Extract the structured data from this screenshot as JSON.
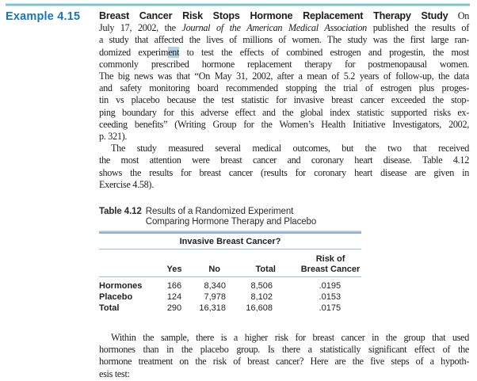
{
  "page": {
    "example_label": "Example 4.15",
    "colors": {
      "accent_teal": "#7cc4c9",
      "example_blue": "#1477bd",
      "table_rule_blue": "#8cb0d8",
      "table_thin_rule_blue": "#a5c0de",
      "selection_highlight_blue": "#b4d4e5"
    }
  },
  "paragraphs": [
    {
      "indent": false,
      "lines": [
        [
          {
            "t": "Breast Cancer Risk Stops Hormone Replacement Therapy Study",
            "s": "b"
          },
          {
            "t": " On"
          }
        ],
        [
          {
            "t": "July 17, 2002, the "
          },
          {
            "t": "Journal of the American Medical Association",
            "s": "i"
          },
          {
            "t": " published the results of"
          }
        ],
        [
          {
            "t": "a study that affected the lives of millions of women. The study was the first large ran-"
          }
        ],
        [
          {
            "t": "domized experim"
          },
          {
            "t": "ent",
            "s": "hl"
          },
          {
            "t": " to test the effects of combined estrogen and progestin, the most"
          }
        ],
        [
          {
            "t": "commonly prescribed hormone replacement therapy for postmenopausal women."
          }
        ],
        [
          {
            "t": "The big news was that “On May 31, 2002, after a mean of 5.2 years of follow-up, the data"
          }
        ],
        [
          {
            "t": "and safety monitoring board recommended stopping the trial of estrogen plus proges-"
          }
        ],
        [
          {
            "t": "tin vs placebo because the test statistic for invasive breast cancer exceeded the stop-"
          }
        ],
        [
          {
            "t": "ping boundary for this adverse effect and the global index statistic supported risks ex-"
          }
        ],
        [
          {
            "t": "ceeding benefits” (Writing Group for the Women’s Health Initiative Investigators, 2002,"
          }
        ],
        [
          {
            "t": "p. 321)."
          }
        ]
      ]
    },
    {
      "indent": true,
      "lines": [
        [
          {
            "t": "The study measured several medical outcomes, but the two that received"
          }
        ],
        [
          {
            "t": "the most attention were breast cancer and coronary heart disease. Table 4.12"
          }
        ],
        [
          {
            "t": "shows the results for breast cancer (results for coronary heart disease are given in"
          }
        ],
        [
          {
            "t": "Exercise 4.58)."
          }
        ]
      ]
    },
    {
      "indent": true,
      "lines": [
        [
          {
            "t": "Within the sample, there is a higher risk for breast cancer in the group that used"
          }
        ],
        [
          {
            "t": "hormones than in the placebo group. Is there a statistically significant effect of the"
          }
        ],
        [
          {
            "t": "hormone treatment on the risk of breast cancer? Here are the five steps of a hypoth-"
          }
        ],
        [
          {
            "t": "esis test:"
          }
        ]
      ]
    }
  ],
  "table": {
    "caption_label": "Table 4.12",
    "caption_line1": "Results of a Randomized Experiment",
    "caption_line2": "Comparing Hormone Therapy and Placebo",
    "spanner": "Invasive Breast Cancer?",
    "columns": [
      "Yes",
      "No",
      "Total",
      "Risk of\nBreast Cancer"
    ],
    "rows": [
      {
        "label": "Hormones",
        "values": [
          "166",
          "8,340",
          "8,506",
          ".0195"
        ]
      },
      {
        "label": "Placebo",
        "values": [
          "124",
          "7,978",
          "8,102",
          ".0153"
        ]
      },
      {
        "label": "Total",
        "values": [
          "290",
          "16,318",
          "16,608",
          ".0175"
        ]
      }
    ]
  }
}
